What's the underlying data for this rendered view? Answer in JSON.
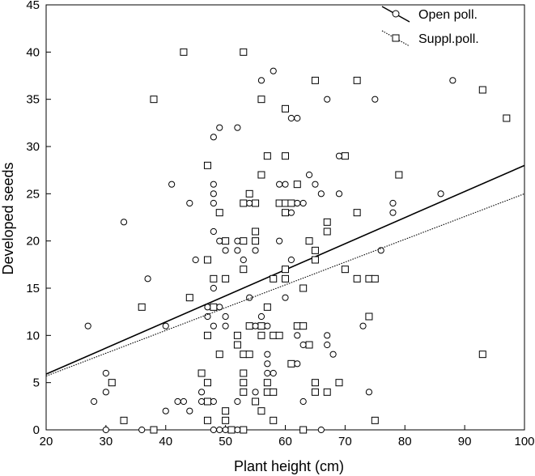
{
  "chart_data": {
    "type": "scatter",
    "title": "",
    "xlabel": "Plant height (cm)",
    "ylabel": "Developed seeds",
    "xlim": [
      20,
      100
    ],
    "ylim": [
      0,
      45
    ],
    "xticks": [
      20,
      30,
      40,
      50,
      60,
      70,
      80,
      90,
      100
    ],
    "yticks": [
      0,
      5,
      10,
      15,
      20,
      25,
      30,
      35,
      40,
      45
    ],
    "grid": false,
    "legend_position": "top-right",
    "series": [
      {
        "name": "Open poll.",
        "marker": "circle",
        "line_style": "solid",
        "regression": {
          "x": [
            20,
            100
          ],
          "y": [
            5.9,
            28
          ]
        },
        "points": [
          [
            27,
            11
          ],
          [
            28,
            3
          ],
          [
            30,
            6
          ],
          [
            30,
            4
          ],
          [
            30,
            0
          ],
          [
            33,
            22
          ],
          [
            36,
            0
          ],
          [
            37,
            16
          ],
          [
            40,
            11
          ],
          [
            40,
            2
          ],
          [
            41,
            26
          ],
          [
            42,
            3
          ],
          [
            43,
            3
          ],
          [
            44,
            24
          ],
          [
            44,
            2
          ],
          [
            45,
            18
          ],
          [
            46,
            4
          ],
          [
            46,
            3
          ],
          [
            47,
            13
          ],
          [
            47,
            12
          ],
          [
            48,
            31
          ],
          [
            48,
            26
          ],
          [
            48,
            25
          ],
          [
            48,
            24
          ],
          [
            48,
            21
          ],
          [
            48,
            15
          ],
          [
            48,
            13
          ],
          [
            48,
            11
          ],
          [
            48,
            3
          ],
          [
            48,
            0
          ],
          [
            49,
            32
          ],
          [
            49,
            20
          ],
          [
            49,
            13
          ],
          [
            49,
            0
          ],
          [
            50,
            20
          ],
          [
            50,
            19
          ],
          [
            50,
            12
          ],
          [
            50,
            11
          ],
          [
            50,
            0
          ],
          [
            52,
            32
          ],
          [
            52,
            20
          ],
          [
            52,
            19
          ],
          [
            52,
            10
          ],
          [
            52,
            9
          ],
          [
            52,
            3
          ],
          [
            52,
            0
          ],
          [
            53,
            24
          ],
          [
            53,
            18
          ],
          [
            53,
            0
          ],
          [
            54,
            14
          ],
          [
            54,
            24
          ],
          [
            55,
            19
          ],
          [
            55,
            24
          ],
          [
            55,
            11
          ],
          [
            55,
            4
          ],
          [
            56,
            37
          ],
          [
            56,
            12
          ],
          [
            57,
            8
          ],
          [
            57,
            7
          ],
          [
            57,
            6
          ],
          [
            57,
            5
          ],
          [
            57,
            13
          ],
          [
            57,
            11
          ],
          [
            57,
            4
          ],
          [
            58,
            38
          ],
          [
            58,
            6
          ],
          [
            58,
            4
          ],
          [
            59,
            20
          ],
          [
            59,
            26
          ],
          [
            59,
            24
          ],
          [
            60,
            14
          ],
          [
            60,
            26
          ],
          [
            60,
            24
          ],
          [
            61,
            33
          ],
          [
            61,
            18
          ],
          [
            61,
            23
          ],
          [
            62,
            24
          ],
          [
            62,
            33
          ],
          [
            62,
            11
          ],
          [
            62,
            7
          ],
          [
            62,
            10
          ],
          [
            63,
            3
          ],
          [
            63,
            9
          ],
          [
            63,
            24
          ],
          [
            64,
            27
          ],
          [
            65,
            26
          ],
          [
            66,
            25
          ],
          [
            66,
            0
          ],
          [
            67,
            35
          ],
          [
            67,
            10
          ],
          [
            67,
            9
          ],
          [
            68,
            8
          ],
          [
            69,
            29
          ],
          [
            69,
            25
          ],
          [
            73,
            11
          ],
          [
            74,
            4
          ],
          [
            75,
            35
          ],
          [
            76,
            19
          ],
          [
            78,
            24
          ],
          [
            78,
            23
          ],
          [
            86,
            25
          ],
          [
            88,
            37
          ]
        ]
      },
      {
        "name": "Suppl.poll.",
        "marker": "square",
        "line_style": "dotted",
        "regression": {
          "x": [
            20,
            100
          ],
          "y": [
            5.7,
            25
          ]
        },
        "points": [
          [
            31,
            5
          ],
          [
            33,
            1
          ],
          [
            36,
            13
          ],
          [
            38,
            35
          ],
          [
            38,
            0
          ],
          [
            43,
            40
          ],
          [
            44,
            14
          ],
          [
            46,
            6
          ],
          [
            47,
            28
          ],
          [
            47,
            18
          ],
          [
            47,
            10
          ],
          [
            47,
            5
          ],
          [
            47,
            3
          ],
          [
            47,
            1
          ],
          [
            48,
            16
          ],
          [
            48,
            13
          ],
          [
            49,
            8
          ],
          [
            49,
            23
          ],
          [
            50,
            20
          ],
          [
            50,
            16
          ],
          [
            50,
            2
          ],
          [
            50,
            1
          ],
          [
            51,
            0
          ],
          [
            52,
            10
          ],
          [
            52,
            9
          ],
          [
            53,
            40
          ],
          [
            53,
            24
          ],
          [
            53,
            20
          ],
          [
            53,
            17
          ],
          [
            53,
            8
          ],
          [
            53,
            6
          ],
          [
            53,
            5
          ],
          [
            53,
            4
          ],
          [
            53,
            0
          ],
          [
            54,
            8
          ],
          [
            54,
            25
          ],
          [
            54,
            11
          ],
          [
            55,
            24
          ],
          [
            55,
            21
          ],
          [
            55,
            20
          ],
          [
            55,
            3
          ],
          [
            56,
            35
          ],
          [
            56,
            27
          ],
          [
            56,
            11
          ],
          [
            56,
            10
          ],
          [
            56,
            2
          ],
          [
            57,
            29
          ],
          [
            57,
            13
          ],
          [
            57,
            5
          ],
          [
            57,
            4
          ],
          [
            58,
            4
          ],
          [
            58,
            16
          ],
          [
            58,
            10
          ],
          [
            58,
            1
          ],
          [
            59,
            24
          ],
          [
            59,
            10
          ],
          [
            60,
            34
          ],
          [
            60,
            29
          ],
          [
            60,
            24
          ],
          [
            60,
            23
          ],
          [
            60,
            17
          ],
          [
            60,
            16
          ],
          [
            61,
            7
          ],
          [
            61,
            24
          ],
          [
            62,
            26
          ],
          [
            62,
            11
          ],
          [
            63,
            15
          ],
          [
            63,
            11
          ],
          [
            63,
            0
          ],
          [
            64,
            9
          ],
          [
            64,
            20
          ],
          [
            65,
            37
          ],
          [
            65,
            19
          ],
          [
            65,
            18
          ],
          [
            65,
            5
          ],
          [
            65,
            4
          ],
          [
            67,
            4
          ],
          [
            67,
            22
          ],
          [
            67,
            21
          ],
          [
            69,
            5
          ],
          [
            70,
            29
          ],
          [
            70,
            17
          ],
          [
            72,
            37
          ],
          [
            72,
            23
          ],
          [
            72,
            16
          ],
          [
            74,
            16
          ],
          [
            74,
            12
          ],
          [
            75,
            16
          ],
          [
            75,
            1
          ],
          [
            79,
            27
          ],
          [
            93,
            36
          ],
          [
            93,
            8
          ],
          [
            97,
            33
          ]
        ]
      }
    ]
  }
}
